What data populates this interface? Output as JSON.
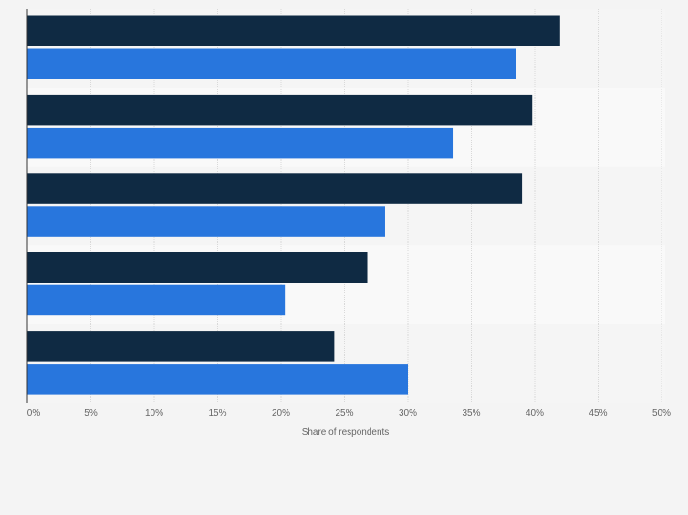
{
  "chart_data": {
    "type": "bar",
    "orientation": "horizontal",
    "categories": [
      "",
      "",
      "",
      "",
      ""
    ],
    "series": [
      {
        "values": [
          42.0,
          39.8,
          39.0,
          26.8,
          24.2
        ]
      },
      {
        "values": [
          38.5,
          33.6,
          28.2,
          20.3,
          30.0
        ]
      }
    ],
    "xlabel": "Share of respondents",
    "xlim": [
      0,
      50
    ],
    "x_ticks": [
      "0%",
      "5%",
      "10%",
      "15%",
      "20%",
      "25%",
      "30%",
      "35%",
      "40%",
      "45%",
      "50%"
    ],
    "grid": true,
    "colors": {
      "series": [
        "#0f2a43",
        "#2876dd"
      ],
      "band_odd": "#f5f5f5",
      "band_even": "#f9f9f9",
      "grid": "#d9d9d9",
      "axis": "#333333",
      "text": "#666666"
    }
  }
}
